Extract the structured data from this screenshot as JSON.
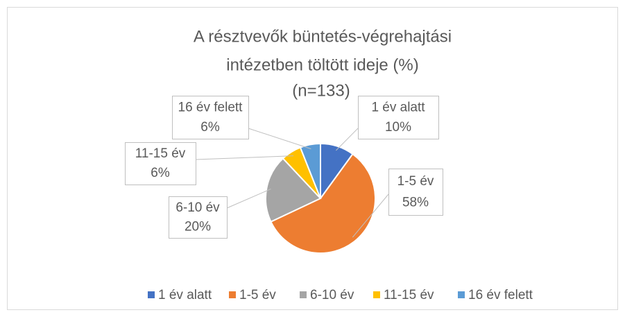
{
  "chart_data": {
    "type": "pie",
    "title": [
      "A résztvevők büntetés-végrehajtási",
      "intézetben töltött ideje (%)",
      "(n=133)"
    ],
    "categories": [
      "1 év alatt",
      "1-5 év",
      "6-10 év",
      "11-15 év",
      "16 év felett"
    ],
    "values": [
      10,
      58,
      20,
      6,
      6
    ],
    "value_labels": [
      "10%",
      "58%",
      "20%",
      "6%",
      "6%"
    ],
    "colors": [
      "#4472c4",
      "#ed7d31",
      "#a5a5a5",
      "#ffc000",
      "#5b9bd5"
    ],
    "legend": "bottom"
  }
}
